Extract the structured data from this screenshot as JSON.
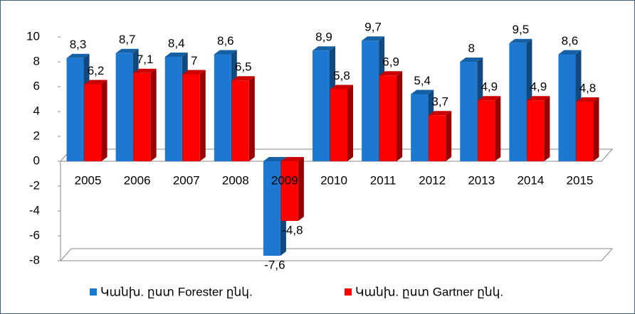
{
  "chart_data": {
    "type": "bar3d",
    "categories": [
      "2005",
      "2006",
      "2007",
      "2008",
      "2009",
      "2010",
      "2011",
      "2012",
      "2013",
      "2014",
      "2015"
    ],
    "series": [
      {
        "name": "Կանխ. ըստ Forester ընկ.",
        "color": "#1c78d0",
        "values": [
          8.3,
          8.7,
          8.4,
          8.6,
          -7.6,
          8.9,
          9.7,
          5.4,
          8,
          9.5,
          8.6
        ],
        "value_labels": [
          "8,3",
          "8,7",
          "8,4",
          "8,6",
          "-7,6",
          "8,9",
          "9,7",
          "5,4",
          "8",
          "9,5",
          "8,6"
        ]
      },
      {
        "name": "Կանխ. ըստ Gartner ընկ.",
        "color": "#ff0000",
        "values": [
          6.2,
          7.1,
          7,
          6.5,
          -4.8,
          5.8,
          6.9,
          3.7,
          4.9,
          4.9,
          4.8
        ],
        "value_labels": [
          "6,2",
          "7,1",
          "7",
          "6,5",
          "-4,8",
          "5,8",
          "6,9",
          "3,7",
          "4,9",
          "4,9",
          "4,8"
        ]
      }
    ],
    "ylim": [
      -8,
      10
    ],
    "yticks": [
      10,
      8,
      6,
      4,
      2,
      0,
      -2,
      -4,
      -6,
      -8
    ],
    "legend": "bottom"
  }
}
